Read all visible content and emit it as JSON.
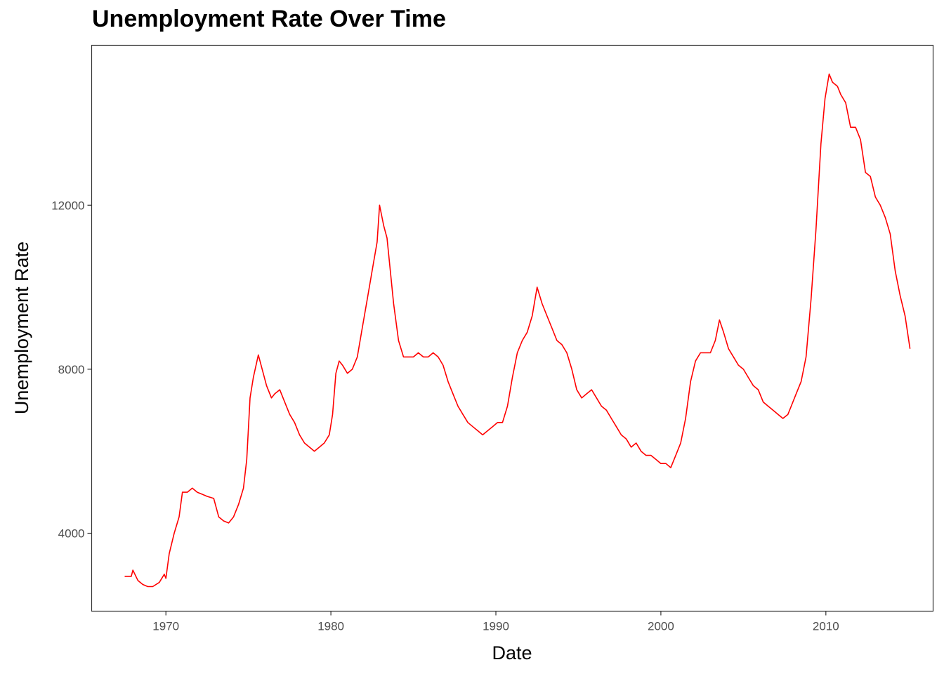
{
  "chart_data": {
    "type": "line",
    "title": "Unemployment Rate Over Time",
    "xlabel": "Date",
    "ylabel": "Unemployment Rate",
    "xlim": [
      1965.5,
      2016.5
    ],
    "ylim": [
      2100,
      15900
    ],
    "x_ticks": [
      1970,
      1980,
      1990,
      2000,
      2010
    ],
    "y_ticks": [
      4000,
      8000,
      12000
    ],
    "grid": false,
    "legend": "none",
    "color": "#ff0000",
    "series": [
      {
        "x": [
          1967.5,
          1967.9,
          1968.0,
          1968.3,
          1968.6,
          1968.9,
          1969.2,
          1969.6,
          1969.9,
          1970.0,
          1970.2,
          1970.5,
          1970.8,
          1971.0,
          1971.3,
          1971.6,
          1971.9,
          1972.2,
          1972.5,
          1972.9,
          1973.2,
          1973.5,
          1973.8,
          1974.1,
          1974.4,
          1974.7,
          1974.9,
          1975.1,
          1975.3,
          1975.6,
          1975.9,
          1976.1,
          1976.4,
          1976.6,
          1976.9,
          1977.2,
          1977.5,
          1977.8,
          1978.1,
          1978.4,
          1978.7,
          1979.0,
          1979.3,
          1979.6,
          1979.9,
          1980.1,
          1980.3,
          1980.5,
          1980.7,
          1981.0,
          1981.3,
          1981.6,
          1981.9,
          1982.2,
          1982.5,
          1982.8,
          1982.95,
          1983.2,
          1983.4,
          1983.6,
          1983.8,
          1984.1,
          1984.4,
          1984.7,
          1985.0,
          1985.3,
          1985.6,
          1985.9,
          1986.2,
          1986.5,
          1986.8,
          1987.1,
          1987.4,
          1987.7,
          1988.0,
          1988.3,
          1988.6,
          1988.9,
          1989.2,
          1989.5,
          1989.8,
          1990.1,
          1990.4,
          1990.7,
          1991.0,
          1991.3,
          1991.6,
          1991.9,
          1992.2,
          1992.5,
          1992.8,
          1993.1,
          1993.4,
          1993.7,
          1994.0,
          1994.3,
          1994.6,
          1994.9,
          1995.2,
          1995.5,
          1995.8,
          1996.1,
          1996.4,
          1996.7,
          1997.0,
          1997.3,
          1997.6,
          1997.9,
          1998.2,
          1998.5,
          1998.8,
          1999.1,
          1999.4,
          1999.7,
          2000.0,
          2000.3,
          2000.6,
          2000.9,
          2001.2,
          2001.5,
          2001.8,
          2002.1,
          2002.4,
          2002.7,
          2003.0,
          2003.3,
          2003.55,
          2003.8,
          2004.1,
          2004.4,
          2004.7,
          2005.0,
          2005.3,
          2005.6,
          2005.9,
          2006.2,
          2006.5,
          2006.8,
          2007.1,
          2007.4,
          2007.7,
          2007.9,
          2008.2,
          2008.5,
          2008.8,
          2009.1,
          2009.4,
          2009.7,
          2009.95,
          2010.2,
          2010.4,
          2010.7,
          2010.9,
          2011.2,
          2011.5,
          2011.8,
          2012.1,
          2012.4,
          2012.7,
          2013.0,
          2013.3,
          2013.6,
          2013.9,
          2014.2,
          2014.5,
          2014.8,
          2015.1
        ],
        "values": [
          2950,
          2950,
          3100,
          2850,
          2750,
          2700,
          2700,
          2800,
          3000,
          2900,
          3500,
          4000,
          4400,
          5000,
          5000,
          5100,
          5000,
          4950,
          4900,
          4850,
          4400,
          4300,
          4250,
          4400,
          4700,
          5100,
          5800,
          7300,
          7800,
          8350,
          7900,
          7600,
          7300,
          7400,
          7500,
          7200,
          6900,
          6700,
          6400,
          6200,
          6100,
          6000,
          6100,
          6200,
          6400,
          6900,
          7900,
          8200,
          8100,
          7900,
          8000,
          8300,
          9000,
          9700,
          10400,
          11100,
          12000,
          11500,
          11200,
          10400,
          9600,
          8700,
          8300,
          8300,
          8300,
          8400,
          8300,
          8300,
          8400,
          8300,
          8100,
          7700,
          7400,
          7100,
          6900,
          6700,
          6600,
          6500,
          6400,
          6500,
          6600,
          6700,
          6700,
          7100,
          7800,
          8400,
          8700,
          8900,
          9300,
          10000,
          9600,
          9300,
          9000,
          8700,
          8600,
          8400,
          8000,
          7500,
          7300,
          7400,
          7500,
          7300,
          7100,
          7000,
          6800,
          6600,
          6400,
          6300,
          6100,
          6200,
          6000,
          5900,
          5900,
          5800,
          5700,
          5700,
          5600,
          5900,
          6200,
          6800,
          7700,
          8200,
          8400,
          8400,
          8400,
          8700,
          9200,
          8900,
          8500,
          8300,
          8100,
          8000,
          7800,
          7600,
          7500,
          7200,
          7100,
          7000,
          6900,
          6800,
          6900,
          7100,
          7400,
          7700,
          8300,
          9700,
          11400,
          13500,
          14600,
          15200,
          15000,
          14900,
          14700,
          14500,
          13900,
          13900,
          13600,
          12800,
          12700,
          12200,
          12000,
          11700,
          11300,
          10400,
          9800,
          9300,
          8500
        ]
      }
    ]
  }
}
